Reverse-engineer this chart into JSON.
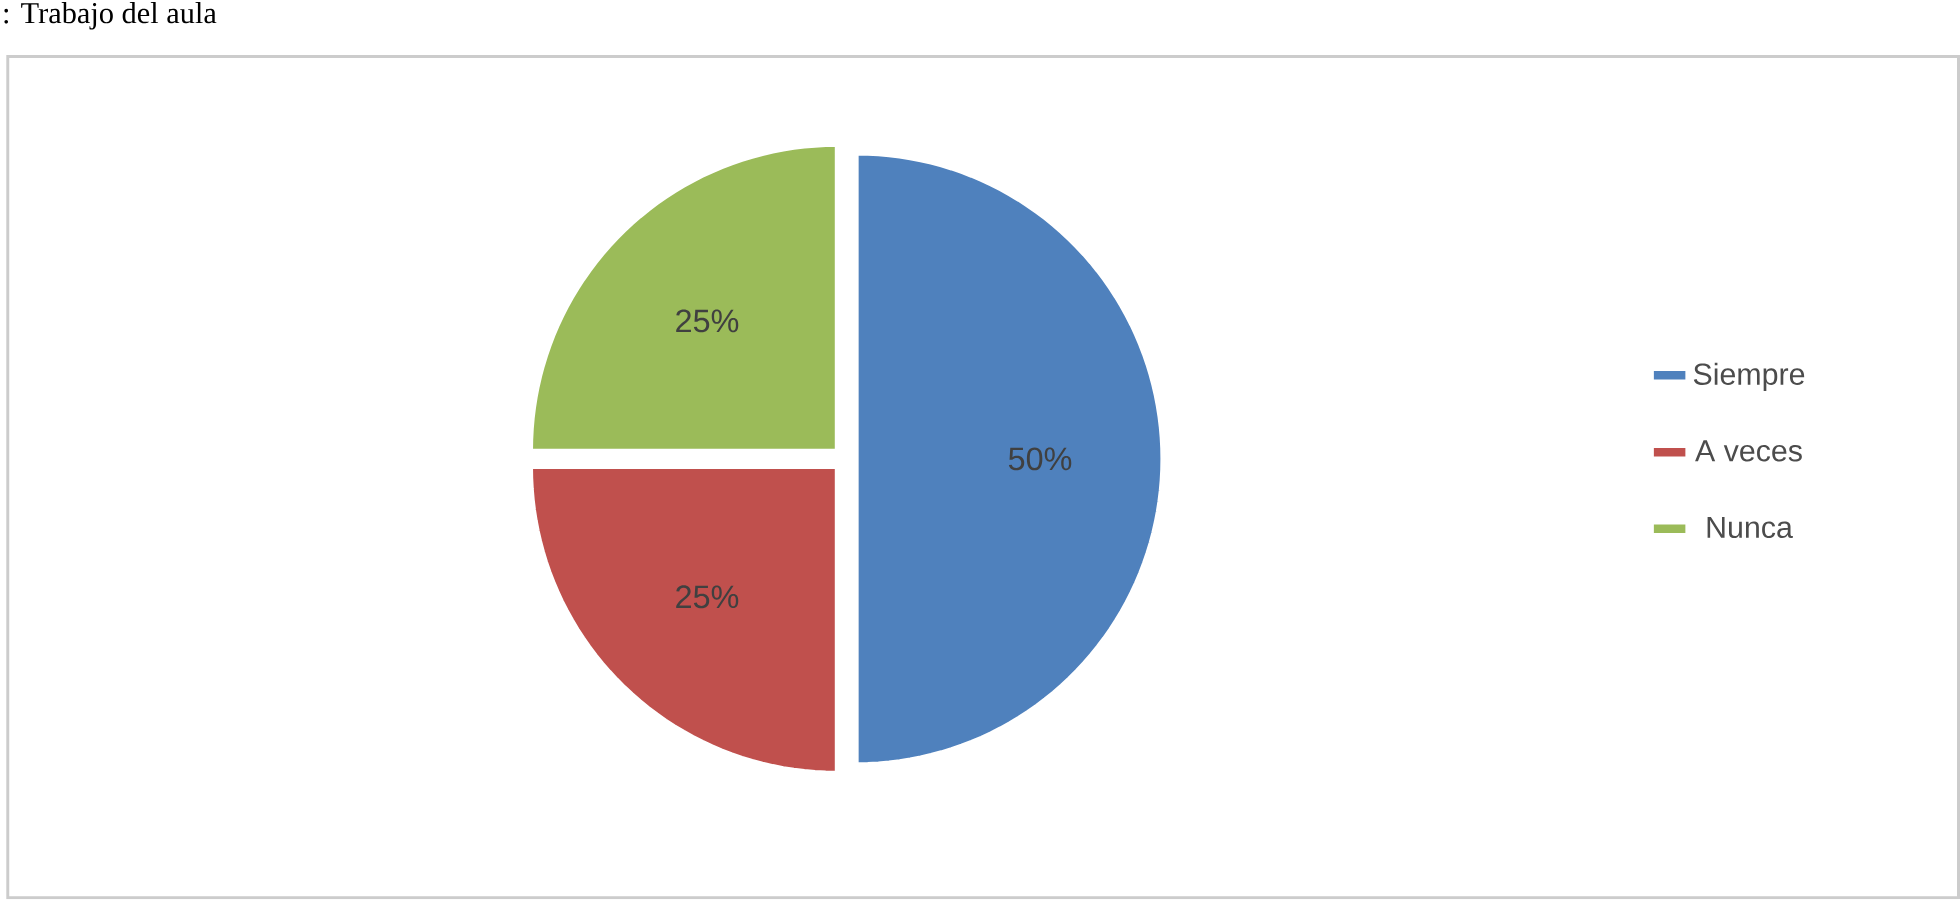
{
  "chart_data": {
    "type": "pie",
    "title": ": Trabajo del aula",
    "categories": [
      "Siempre",
      "A veces",
      "Nunca"
    ],
    "values": [
      50,
      25,
      25
    ],
    "colors": [
      "#4f81bd",
      "#c0504d",
      "#9bbb59"
    ],
    "value_labels": [
      "50%",
      "25%",
      "25%"
    ],
    "legend": "right"
  }
}
